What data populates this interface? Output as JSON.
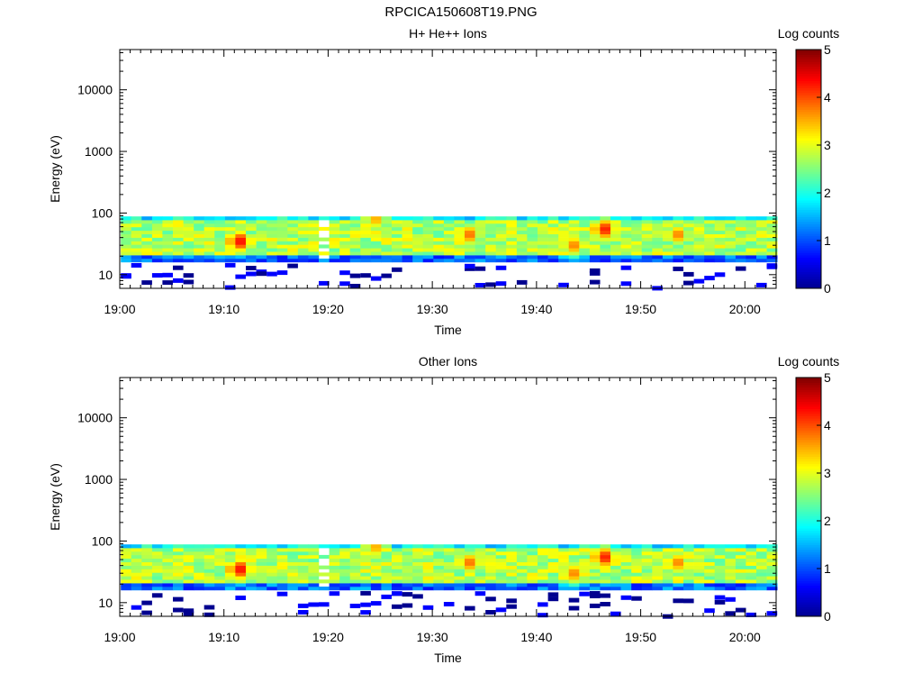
{
  "page_title": "RPCICA150608T19.PNG",
  "colors": {
    "colormap": [
      "#00008f",
      "#0000ff",
      "#0080ff",
      "#00ffff",
      "#80ff80",
      "#ffff00",
      "#ff8000",
      "#ff0000",
      "#800000"
    ],
    "axis": "#000000",
    "background": "#ffffff"
  },
  "chart_data": [
    {
      "type": "heatmap",
      "title": "H+ He++ Ions",
      "xlabel": "Time",
      "ylabel": "Energy (eV)",
      "x_ticks": [
        "19:00",
        "19:10",
        "19:20",
        "19:30",
        "19:40",
        "19:50",
        "20:00"
      ],
      "x_range_minutes": [
        0,
        63
      ],
      "y_scale": "log",
      "y_ticks": [
        "10",
        "100",
        "1000",
        "10000"
      ],
      "y_range": [
        6,
        45000
      ],
      "colorbar": {
        "label": "Log counts",
        "ticks": [
          "0",
          "1",
          "2",
          "3",
          "4",
          "5"
        ],
        "range": [
          0,
          5
        ]
      },
      "energy_band_ev": [
        16,
        95
      ],
      "hotspots": [
        {
          "time_min": 11,
          "energy_ev": 35,
          "log_counts": 4.3
        },
        {
          "time_min": 46,
          "energy_ev": 55,
          "log_counts": 4.2
        },
        {
          "time_min": 33,
          "energy_ev": 45,
          "log_counts": 3.8
        },
        {
          "time_min": 43,
          "energy_ev": 30,
          "log_counts": 3.7
        },
        {
          "time_min": 53,
          "energy_ev": 45,
          "log_counts": 3.7
        },
        {
          "time_min": 24,
          "energy_ev": 80,
          "log_counts": 3.5
        }
      ],
      "gap_times_min": [
        19.5
      ],
      "typical_log_counts": 2.8
    },
    {
      "type": "heatmap",
      "title": "Other Ions",
      "xlabel": "Time",
      "ylabel": "Energy (eV)",
      "x_ticks": [
        "19:00",
        "19:10",
        "19:20",
        "19:30",
        "19:40",
        "19:50",
        "20:00"
      ],
      "x_range_minutes": [
        0,
        63
      ],
      "y_scale": "log",
      "y_ticks": [
        "10",
        "100",
        "1000",
        "10000"
      ],
      "y_range": [
        6,
        45000
      ],
      "colorbar": {
        "label": "Log counts",
        "ticks": [
          "0",
          "1",
          "2",
          "3",
          "4",
          "5"
        ],
        "range": [
          0,
          5
        ]
      },
      "energy_band_ev": [
        16,
        95
      ],
      "hotspots": [
        {
          "time_min": 11,
          "energy_ev": 35,
          "log_counts": 4.3
        },
        {
          "time_min": 46,
          "energy_ev": 55,
          "log_counts": 4.2
        },
        {
          "time_min": 33,
          "energy_ev": 45,
          "log_counts": 3.8
        },
        {
          "time_min": 43,
          "energy_ev": 30,
          "log_counts": 3.7
        },
        {
          "time_min": 53,
          "energy_ev": 45,
          "log_counts": 3.7
        },
        {
          "time_min": 24,
          "energy_ev": 80,
          "log_counts": 3.5
        }
      ],
      "gap_times_min": [
        19.5
      ],
      "typical_log_counts": 2.8
    }
  ]
}
